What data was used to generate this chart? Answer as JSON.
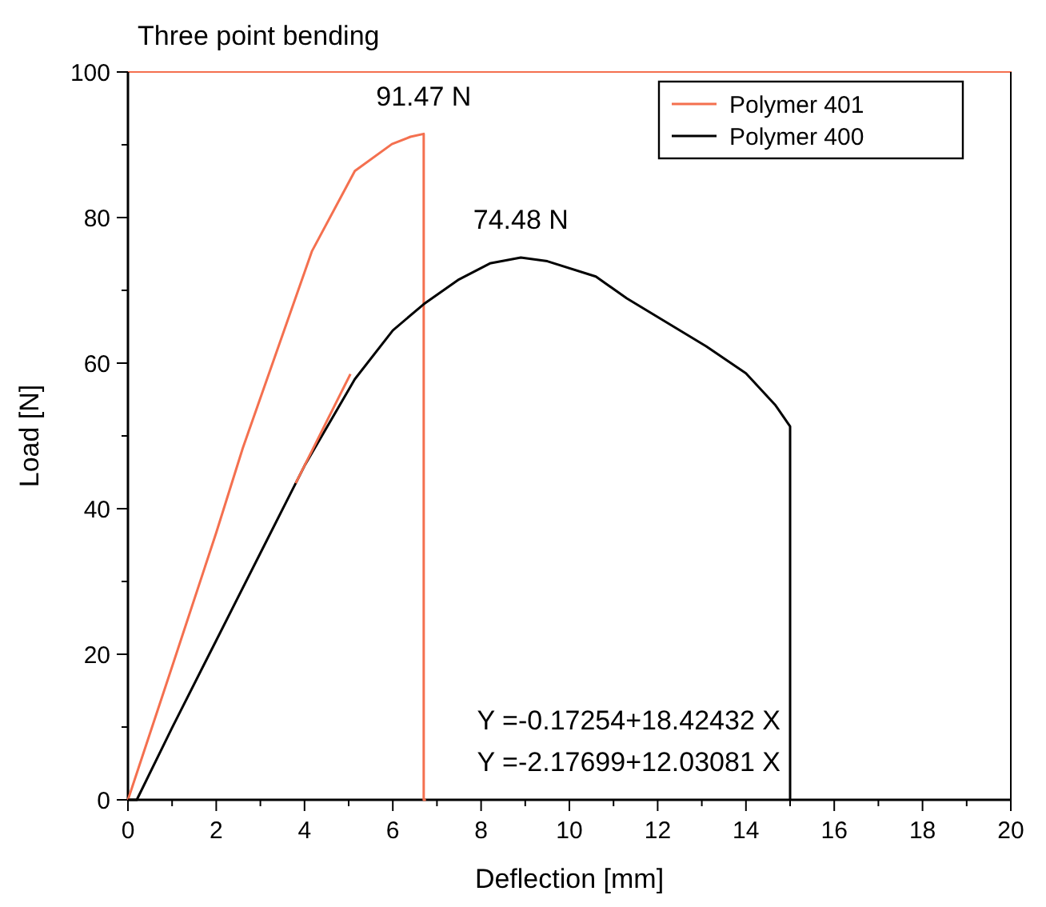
{
  "chart_data": {
    "type": "line",
    "title": "Three point bending",
    "xlabel": "Deflection [mm]",
    "ylabel": "Load [N]",
    "xlim": [
      0,
      20
    ],
    "ylim": [
      0,
      100
    ],
    "xticks": [
      0,
      {
        "value": 1,
        "label": null
      },
      2,
      {
        "value": 3,
        "label": null
      },
      4,
      {
        "value": 5,
        "label": null
      },
      6,
      {
        "value": 7,
        "label": null
      },
      8,
      {
        "value": 9,
        "label": null
      },
      10,
      {
        "value": 11,
        "label": null
      },
      12,
      {
        "value": 13,
        "label": null
      },
      14,
      {
        "value": 15,
        "label": null
      },
      16,
      {
        "value": 17,
        "label": null
      },
      18,
      {
        "value": 19,
        "label": null
      },
      20
    ],
    "yticks": [
      0,
      {
        "value": 10,
        "label": null
      },
      20,
      {
        "value": 30,
        "label": null
      },
      40,
      {
        "value": 50,
        "label": null
      },
      60,
      {
        "value": 70,
        "label": null
      },
      80,
      {
        "value": 90,
        "label": null
      },
      100
    ],
    "grid": false,
    "legend": "top right",
    "marker": "none",
    "line_style": "solid",
    "series": [
      {
        "name": "Polymer 401",
        "color": "#f4704f",
        "x": [
          0,
          1,
          2,
          2.6,
          3.33,
          4.17,
          5.14,
          5.98,
          6.4,
          6.7,
          6.7,
          6.75
        ],
        "values": [
          0,
          18.3,
          36.7,
          48.3,
          60.9,
          75.4,
          86.4,
          90.1,
          91.1,
          91.5,
          0,
          0
        ]
      },
      {
        "name": "Polymer 400",
        "color": "#000000",
        "x": [
          0,
          0.2,
          1,
          2,
          3,
          4,
          5.14,
          6,
          6.7,
          7.5,
          8.2,
          8.9,
          9.5,
          10.6,
          11.3,
          12.2,
          13.1,
          14,
          14.67,
          15.0,
          15.0
        ],
        "values": [
          0,
          0,
          9.9,
          21.9,
          33.9,
          45.9,
          57.8,
          64.5,
          68.1,
          71.5,
          73.7,
          74.5,
          74.0,
          71.9,
          68.9,
          65.6,
          62.3,
          58.6,
          54.2,
          51.3,
          0
        ]
      },
      {
        "type": "line",
        "color": "#f4704f",
        "x": [
          3.8,
          5.04
        ],
        "values": [
          43.5,
          58.5
        ]
      }
    ],
    "annotations": [
      {
        "text": "91.47 N",
        "x": 6.7,
        "y": 91.47
      },
      {
        "text": "74.48 N",
        "x": 8.9,
        "y": 74.48
      },
      "Y =-0.17254+18.42432 X",
      "Y =-2.17699+12.03081 X"
    ]
  }
}
